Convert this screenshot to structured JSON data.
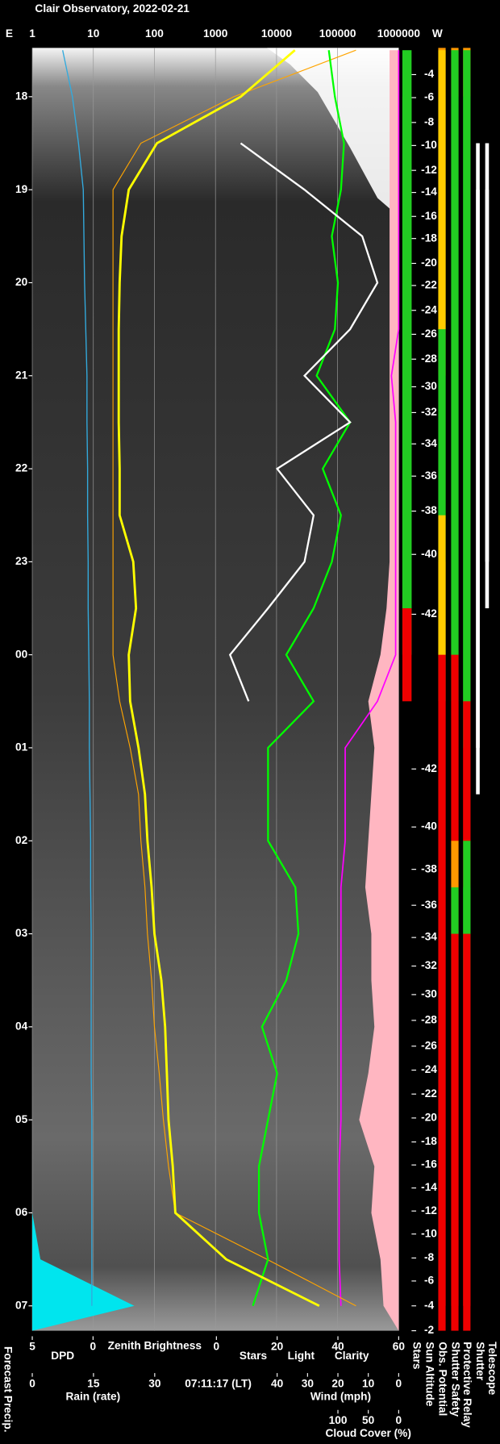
{
  "chart_data": {
    "type": "keogram",
    "title": "Clair Observatory, 2022-02-21",
    "time": "07:11:17 (LT)",
    "categories": [
      null,
      "18",
      null,
      "19",
      null,
      "20",
      null,
      "21",
      null,
      "22",
      null,
      "23",
      null,
      "00",
      null,
      "01",
      null,
      "02",
      null,
      "03",
      null,
      "04",
      null,
      "05",
      null,
      "06",
      null,
      "07"
    ],
    "brightness_axis": {
      "scale": "log",
      "xlim": [
        1,
        1000000
      ],
      "xticks": [
        1,
        10,
        100,
        1000,
        10000,
        100000,
        1000000
      ],
      "grid": true,
      "left_label": "E",
      "right_label": "W",
      "label": "Zenith Brightness",
      "color": "#ffff00"
    },
    "dpd_axis": {
      "xlim": [
        5,
        0
      ],
      "xticks": [
        5,
        0
      ],
      "label": "DPD",
      "color": "#33aadd"
    },
    "stars_axis": {
      "xlim": [
        0,
        60
      ],
      "xticks": [
        0,
        20,
        40,
        60
      ],
      "labels": [
        {
          "text": "Stars",
          "color": "#ffffff"
        },
        {
          "text": "Light",
          "color": "#ffff00"
        },
        {
          "text": "Clarity",
          "color": "#00ff00"
        }
      ]
    },
    "rain_axis": {
      "xlim": [
        0,
        30
      ],
      "xticks": [
        0,
        15,
        30
      ],
      "label": "Rain (rate)",
      "color": "#00e5ee"
    },
    "wind_axis": {
      "xlim": [
        40,
        0
      ],
      "xticks": [
        40,
        30,
        20,
        10,
        0
      ],
      "label": "Wind (mph)",
      "color": "#ffb6c1"
    },
    "cloud_axis": {
      "xlim": [
        100,
        0
      ],
      "xticks": [
        100,
        50,
        0
      ],
      "label": "Cloud Cover (%)",
      "color": "#ff00ff"
    },
    "zenith_brightness": {
      "color": "#ffff00",
      "values": [
        20000,
        2600,
        110,
        38,
        29,
        27,
        26,
        26,
        26,
        27,
        27,
        45,
        50,
        38,
        40,
        55,
        70,
        77,
        90,
        100,
        130,
        150,
        160,
        170,
        200,
        220,
        1500,
        50000
      ]
    },
    "model_brightness": {
      "color": "#ffa500",
      "values": [
        200000,
        2000,
        60,
        21,
        21,
        21,
        21,
        21,
        21,
        21,
        21,
        21,
        21,
        21,
        27,
        40,
        55,
        60,
        70,
        77,
        90,
        100,
        120,
        140,
        170,
        220,
        7000,
        200000
      ]
    },
    "stars": {
      "color": "#ffffff",
      "values": [
        null,
        null,
        8,
        29,
        48,
        53,
        44,
        29,
        44,
        20,
        32,
        29,
        17,
        4.5,
        10.6,
        null,
        null,
        null,
        null,
        null,
        null,
        null,
        null,
        null,
        null,
        null,
        null,
        null
      ]
    },
    "clarity": {
      "color": "#00ff00",
      "values": [
        37,
        39,
        42,
        41,
        38,
        40,
        39,
        33,
        44,
        35,
        41,
        38,
        32,
        23,
        32,
        17,
        17,
        17,
        26,
        27,
        23,
        15,
        20,
        17,
        14,
        14,
        17,
        12
      ]
    },
    "cloud_cover": {
      "color": "#ff00ff",
      "values": [
        0,
        0,
        0,
        0,
        0,
        0,
        0,
        12,
        5,
        5,
        5,
        5,
        5,
        5,
        35,
        88,
        88,
        88,
        95,
        95,
        95,
        95,
        95,
        95,
        98,
        98,
        98,
        95
      ]
    },
    "wind": {
      "color": "#ffb6c1",
      "values": [
        3,
        3,
        3,
        3,
        3,
        3,
        3,
        3,
        3,
        3,
        3,
        3,
        4,
        6,
        10,
        8,
        9,
        10,
        11,
        9,
        9,
        8,
        10,
        13,
        8,
        9,
        6,
        5
      ]
    },
    "dpd": {
      "color": "#33aadd",
      "values": [
        2.5,
        1.7,
        1.2,
        0.8,
        0.75,
        0.7,
        0.6,
        0.5,
        0.5,
        0.45,
        0.45,
        0.4,
        0.4,
        0.35,
        0.3,
        0.3,
        0.25,
        0.2,
        0.2,
        0.15,
        0.15,
        0.15,
        0.15,
        0.1,
        0.1,
        0.1,
        0.1,
        0.1
      ]
    },
    "rain": {
      "color": "#00e5ee",
      "values": [
        0,
        0,
        0,
        0,
        0,
        0,
        0,
        0,
        0,
        0,
        0,
        0,
        0,
        0,
        0,
        0,
        0,
        0,
        0,
        0,
        0,
        0,
        0,
        0,
        0,
        0,
        2,
        25
      ]
    },
    "sun_altitude_ticks": {
      "evening": [
        -4,
        -6,
        -8,
        -10,
        -12,
        -14,
        -16,
        -18,
        -20,
        -22,
        -24,
        -26,
        -28,
        -30,
        -32,
        -34,
        -36,
        -38,
        -40,
        -42
      ],
      "morning": [
        -42,
        -40,
        -38,
        -36,
        -34,
        -32,
        -30,
        -28,
        -26,
        -24,
        -22,
        -20,
        -18,
        -16,
        -14,
        -12,
        -10,
        -8,
        -6,
        -4,
        -2
      ]
    },
    "forecast_label": "Forecast Precip.",
    "status_labels": [
      "Stars",
      "Sun Altitude",
      "Obs. Potential",
      "Shutter Safety",
      "Protective Relay",
      "Shutter",
      "Telescope"
    ],
    "status_columns": [
      {
        "colors": [
          null,
          "#22cc22",
          "#22cc22",
          "#22cc22",
          "#22cc22",
          "#22cc22",
          "#22cc22",
          "#22cc22",
          "#22cc22",
          "#22cc22",
          "#22cc22",
          "#22cc22",
          "#22cc22",
          "#ee0000",
          null,
          null,
          null,
          null,
          null,
          null,
          null,
          null,
          null,
          null,
          null,
          null,
          null,
          null
        ]
      },
      {
        "colors": [
          "#ff9900",
          "#ffcc00",
          "#ffcc00",
          "#ffcc00",
          "#ffcc00",
          "#ffcc00",
          "#ffcc00",
          "#22cc22",
          "#22cc22",
          "#22cc22",
          "#22cc22",
          "#ffcc00",
          "#ffcc00",
          "#ffcc00",
          "#ee0000",
          "#ee0000",
          "#ee0000",
          "#ee0000",
          "#ee0000",
          "#ee0000",
          "#ee0000",
          "#ee0000",
          "#ee0000",
          "#ee0000",
          "#ee0000",
          "#ee0000",
          "#ee0000",
          "#ee0000"
        ]
      },
      {
        "colors": [
          "#ff9900",
          "#22cc22",
          "#22cc22",
          "#22cc22",
          "#22cc22",
          "#22cc22",
          "#22cc22",
          "#22cc22",
          "#22cc22",
          "#22cc22",
          "#22cc22",
          "#22cc22",
          "#22cc22",
          "#22cc22",
          "#ee0000",
          "#ee0000",
          "#ee0000",
          "#ee0000",
          "#ff9900",
          "#22cc22",
          "#ee0000",
          "#ee0000",
          "#ee0000",
          "#ee0000",
          "#ee0000",
          "#ee0000",
          "#ee0000",
          "#ee0000"
        ]
      },
      {
        "colors": [
          "#ff9900",
          "#22cc22",
          "#22cc22",
          "#22cc22",
          "#22cc22",
          "#22cc22",
          "#22cc22",
          "#22cc22",
          "#22cc22",
          "#22cc22",
          "#22cc22",
          "#22cc22",
          "#22cc22",
          "#22cc22",
          "#22cc22",
          "#ee0000",
          "#ee0000",
          "#ee0000",
          "#22cc22",
          "#22cc22",
          "#ee0000",
          "#ee0000",
          "#ee0000",
          "#ee0000",
          "#ee0000",
          "#ee0000",
          "#ee0000",
          "#ee0000"
        ]
      },
      {
        "colors": [
          null,
          null,
          null,
          "#ffffff",
          "#ffffff",
          "#ffffff",
          "#ffffff",
          "#ffffff",
          "#ffffff",
          "#ffffff",
          "#ffffff",
          "#ffffff",
          "#ffffff",
          "#ffffff",
          "#ffffff",
          "#ffffff",
          null,
          null,
          null,
          null,
          null,
          null,
          null,
          null,
          null,
          null,
          null,
          null
        ]
      },
      {
        "colors": [
          null,
          null,
          null,
          "#ffffff",
          "#ffffff",
          "#ffffff",
          "#ffffff",
          "#ffffff",
          "#ffffff",
          "#ffffff",
          "#ffffff",
          "#ffffff",
          null,
          null,
          null,
          null,
          null,
          null,
          null,
          null,
          null,
          null,
          null,
          null,
          null,
          null,
          null,
          null
        ]
      }
    ]
  }
}
